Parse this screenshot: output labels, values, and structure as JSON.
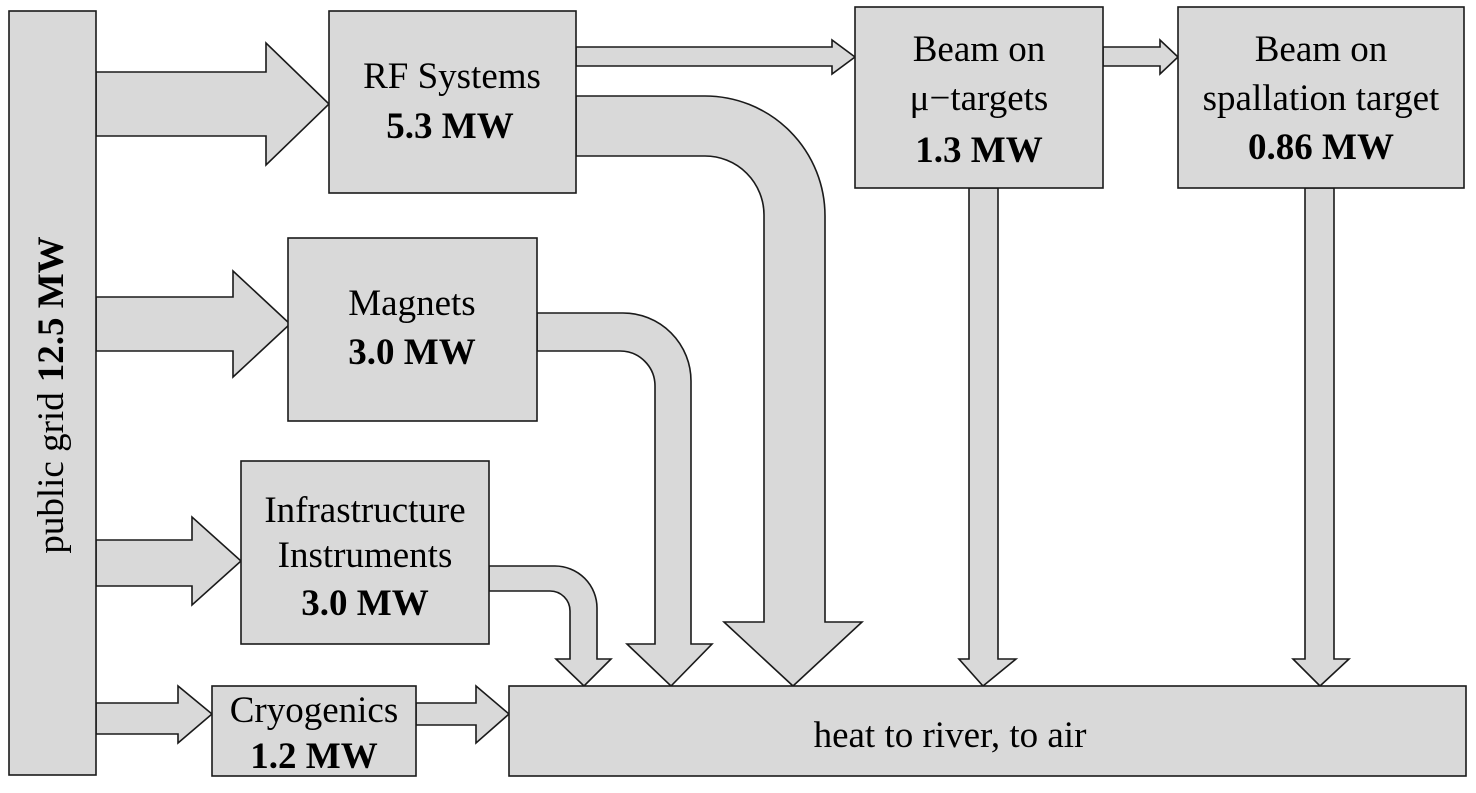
{
  "diagram": {
    "source": {
      "label": "public grid",
      "value": "12.5 MW"
    },
    "nodes": {
      "rf": {
        "name": "RF Systems",
        "value": "5.3 MW"
      },
      "beam_mu": {
        "name_line1": "Beam on",
        "name_line2": "μ−targets",
        "value": "1.3 MW"
      },
      "beam_spall": {
        "name_line1": "Beam on",
        "name_line2": "spallation target",
        "value": "0.86 MW"
      },
      "magnets": {
        "name": "Magnets",
        "value": "3.0 MW"
      },
      "infra": {
        "name_line1": "Infrastructure",
        "name_line2": "Instruments",
        "value": "3.0 MW"
      },
      "cryo": {
        "name": "Cryogenics",
        "value": "1.2 MW"
      },
      "sink": {
        "name": "heat to river, to air"
      }
    },
    "colors": {
      "box_fill": "#d9d9d9",
      "stroke": "#1a1a1a"
    }
  }
}
